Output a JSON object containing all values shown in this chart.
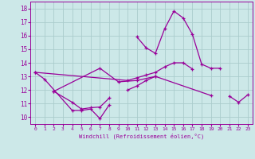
{
  "xlabel": "Windchill (Refroidissement éolien,°C)",
  "bg_color": "#cce8e8",
  "grid_color": "#aacccc",
  "line_color": "#990099",
  "x_ticks": [
    0,
    1,
    2,
    3,
    4,
    5,
    6,
    7,
    8,
    9,
    10,
    11,
    12,
    13,
    14,
    15,
    16,
    17,
    18,
    19,
    20,
    21,
    22,
    23
  ],
  "y_ticks": [
    10,
    11,
    12,
    13,
    14,
    15,
    16,
    17,
    18
  ],
  "xlim": [
    -0.5,
    23.5
  ],
  "ylim": [
    9.5,
    18.5
  ],
  "line1": {
    "x": [
      0,
      1,
      4,
      5,
      6,
      7,
      8
    ],
    "y": [
      13.3,
      12.8,
      10.5,
      10.5,
      10.6,
      9.9,
      10.9
    ]
  },
  "line2": {
    "x": [
      2,
      4,
      5,
      6,
      7,
      8
    ],
    "y": [
      11.9,
      11.1,
      10.6,
      10.7,
      10.75,
      11.4
    ]
  },
  "line3": {
    "x": [
      2,
      7,
      9,
      11,
      13,
      19
    ],
    "y": [
      11.9,
      13.6,
      12.6,
      12.7,
      13.0,
      11.6
    ]
  },
  "line4": {
    "x": [
      0,
      10,
      11,
      12,
      13,
      14,
      15,
      16,
      17
    ],
    "y": [
      13.3,
      12.7,
      12.9,
      13.1,
      13.3,
      13.7,
      14.0,
      14.0,
      13.55
    ]
  },
  "line5": {
    "x": [
      10,
      11,
      12,
      13
    ],
    "y": [
      12.0,
      12.3,
      12.7,
      13.0
    ]
  },
  "line6": {
    "x": [
      11,
      12,
      13,
      14,
      15,
      16,
      17,
      18,
      19,
      20
    ],
    "y": [
      15.9,
      15.1,
      14.7,
      16.5,
      17.8,
      17.3,
      16.1,
      13.9,
      13.6,
      13.6
    ]
  },
  "line7": {
    "x": [
      21,
      22,
      23
    ],
    "y": [
      11.55,
      11.1,
      11.65
    ]
  }
}
